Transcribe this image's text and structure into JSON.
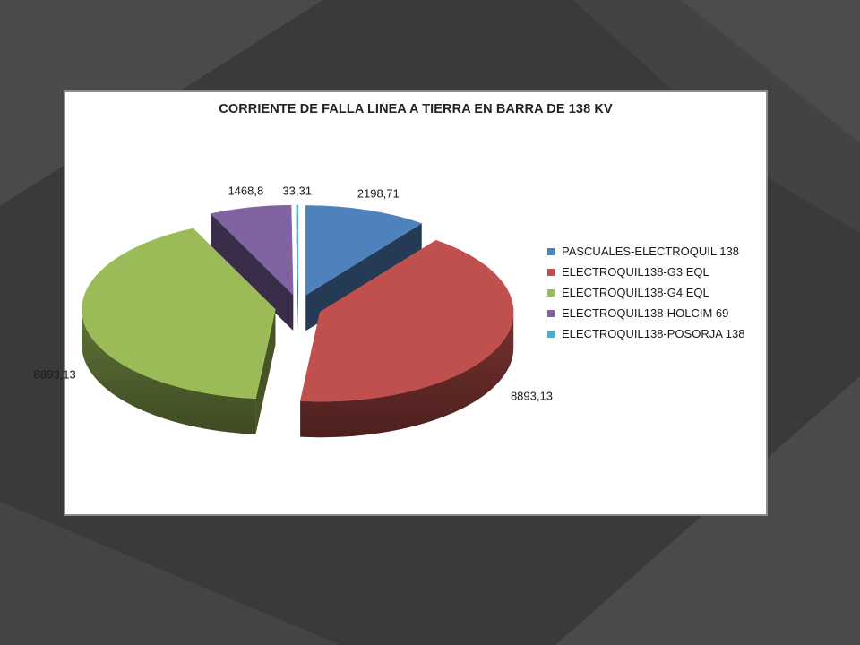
{
  "chart_data": {
    "type": "pie",
    "title": "CORRIENTE DE FALLA LINEA A TIERRA EN BARRA DE 138 KV",
    "categories": [
      "PASCUALES-ELECTROQUIL 138",
      "ELECTROQUIL138-G3 EQL",
      "ELECTROQUIL138-G4 EQL",
      "ELECTROQUIL138-HOLCIM 69",
      "ELECTROQUIL138-POSORJA 138"
    ],
    "values": [
      2198.71,
      8893.13,
      8893.13,
      1468.8,
      33.31
    ],
    "value_labels": [
      "2198,71",
      "8893,13",
      "8893,13",
      "1468,8",
      "33,31"
    ],
    "colors": [
      "#4f81bd",
      "#c0504d",
      "#9bbb59",
      "#8064a2",
      "#4bacc6"
    ],
    "exploded": true,
    "three_d": true,
    "legend_position": "right"
  }
}
